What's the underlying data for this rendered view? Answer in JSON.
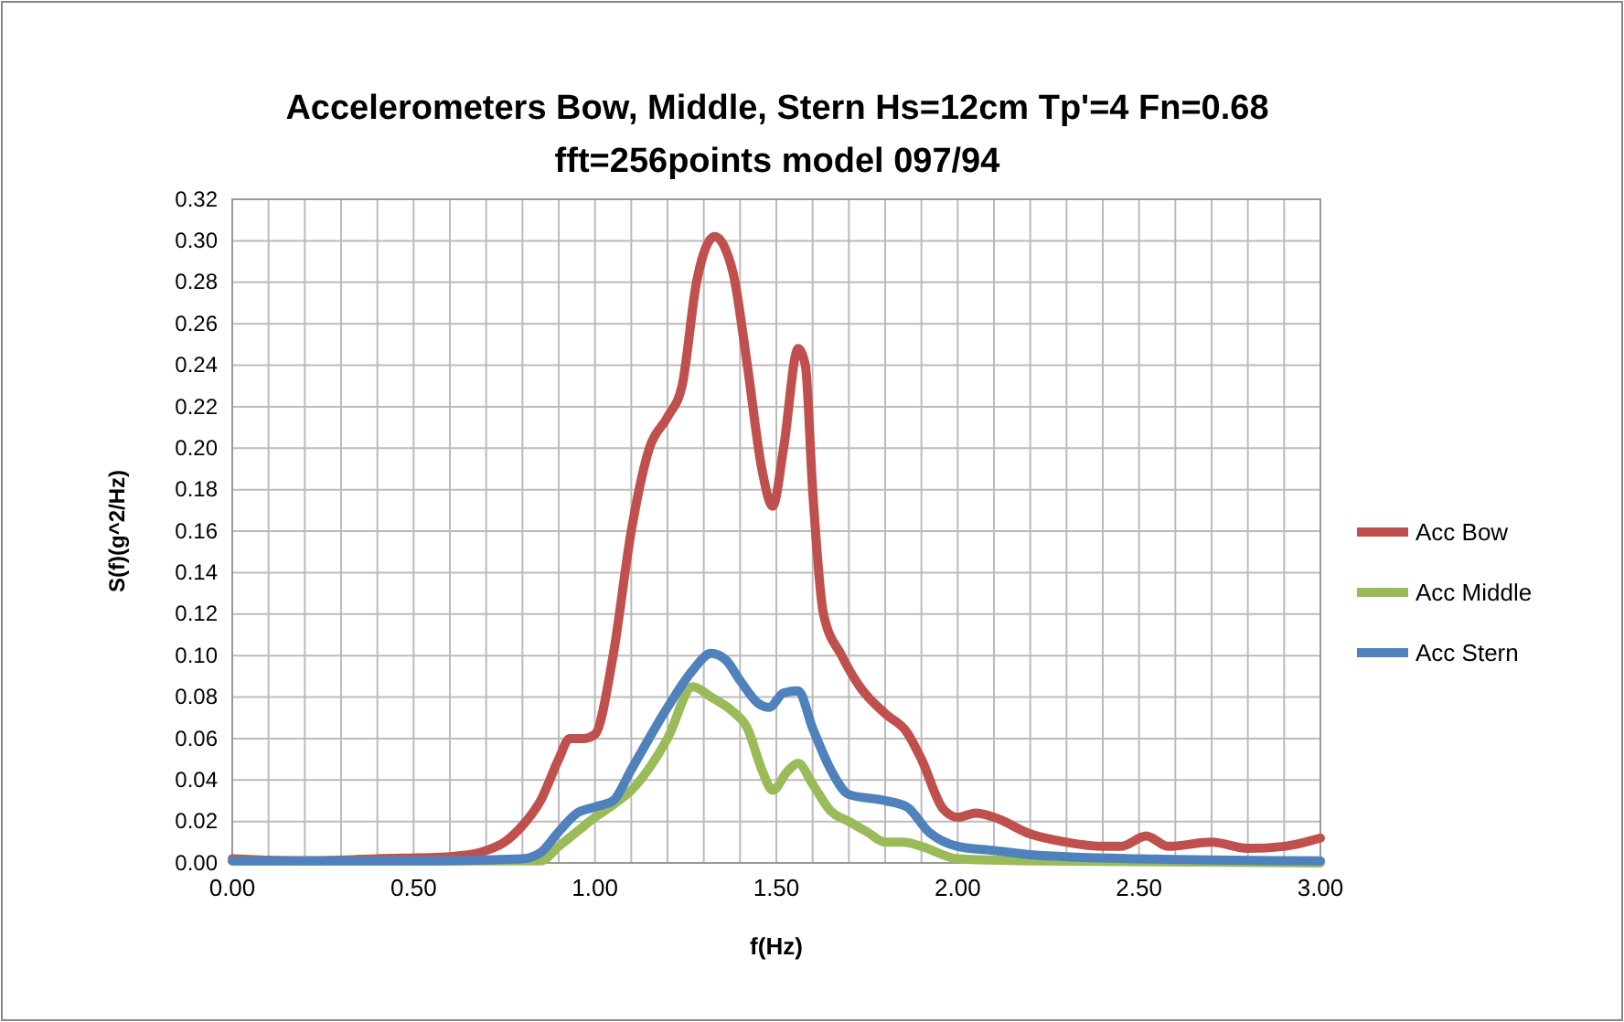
{
  "chart_data": {
    "type": "line",
    "title": "Accelerometers Bow, Middle, Stern Hs=12cm Tp'=4 Fn=0.68",
    "subtitle": "fft=256points model 097/94",
    "xlabel": "f(Hz)",
    "ylabel": "S(f)(g^2/Hz)",
    "legend": "right",
    "grid": true,
    "line_style": "solid",
    "marker": "none",
    "xlim": [
      0,
      3
    ],
    "ylim": [
      0,
      0.32
    ],
    "xticks": [
      {
        "value": 0,
        "label": "0.00"
      },
      {
        "value": 0.1,
        "label": null
      },
      {
        "value": 0.2,
        "label": null
      },
      {
        "value": 0.3,
        "label": null
      },
      {
        "value": 0.4,
        "label": null
      },
      {
        "value": 0.5,
        "label": "0.50"
      },
      {
        "value": 0.6,
        "label": null
      },
      {
        "value": 0.7,
        "label": null
      },
      {
        "value": 0.8,
        "label": null
      },
      {
        "value": 0.9,
        "label": null
      },
      {
        "value": 1,
        "label": "1.00"
      },
      {
        "value": 1.1,
        "label": null
      },
      {
        "value": 1.2,
        "label": null
      },
      {
        "value": 1.3,
        "label": null
      },
      {
        "value": 1.4,
        "label": null
      },
      {
        "value": 1.5,
        "label": "1.50"
      },
      {
        "value": 1.6,
        "label": null
      },
      {
        "value": 1.7,
        "label": null
      },
      {
        "value": 1.8,
        "label": null
      },
      {
        "value": 1.9,
        "label": null
      },
      {
        "value": 2,
        "label": "2.00"
      },
      {
        "value": 2.1,
        "label": null
      },
      {
        "value": 2.2,
        "label": null
      },
      {
        "value": 2.3,
        "label": null
      },
      {
        "value": 2.4,
        "label": null
      },
      {
        "value": 2.5,
        "label": "2.50"
      },
      {
        "value": 2.6,
        "label": null
      },
      {
        "value": 2.7,
        "label": null
      },
      {
        "value": 2.8,
        "label": null
      },
      {
        "value": 2.9,
        "label": null
      },
      {
        "value": 3,
        "label": "3.00"
      }
    ],
    "yticks": [
      {
        "value": 0,
        "label": "0.00"
      },
      {
        "value": 0.02,
        "label": "0.02"
      },
      {
        "value": 0.04,
        "label": "0.04"
      },
      {
        "value": 0.06,
        "label": "0.06"
      },
      {
        "value": 0.08,
        "label": "0.08"
      },
      {
        "value": 0.1,
        "label": "0.10"
      },
      {
        "value": 0.12,
        "label": "0.12"
      },
      {
        "value": 0.14,
        "label": "0.14"
      },
      {
        "value": 0.16,
        "label": "0.16"
      },
      {
        "value": 0.18,
        "label": "0.18"
      },
      {
        "value": 0.2,
        "label": "0.20"
      },
      {
        "value": 0.22,
        "label": "0.22"
      },
      {
        "value": 0.24,
        "label": "0.24"
      },
      {
        "value": 0.26,
        "label": "0.26"
      },
      {
        "value": 0.28,
        "label": "0.28"
      },
      {
        "value": 0.3,
        "label": "0.30"
      },
      {
        "value": 0.32,
        "label": "0.32"
      }
    ],
    "series": [
      {
        "name": "Acc Bow",
        "color": "#c0504d",
        "x": [
          0,
          0.2,
          0.4,
          0.6,
          0.7,
          0.75,
          0.8,
          0.85,
          0.9,
          0.93,
          0.97,
          1.0,
          1.05,
          1.1,
          1.15,
          1.2,
          1.24,
          1.28,
          1.33,
          1.38,
          1.42,
          1.46,
          1.49,
          1.52,
          1.56,
          1.58,
          1.6,
          1.63,
          1.68,
          1.73,
          1.8,
          1.86,
          1.9,
          1.96,
          2.0,
          2.05,
          2.1,
          2.2,
          2.3,
          2.4,
          2.45,
          2.52,
          2.58,
          2.7,
          2.8,
          2.9,
          3.0
        ],
        "values": [
          0.002,
          0.001,
          0.002,
          0.003,
          0.006,
          0.01,
          0.018,
          0.03,
          0.05,
          0.06,
          0.06,
          0.062,
          0.1,
          0.16,
          0.2,
          0.215,
          0.23,
          0.28,
          0.302,
          0.285,
          0.24,
          0.19,
          0.172,
          0.2,
          0.248,
          0.24,
          0.18,
          0.12,
          0.1,
          0.085,
          0.072,
          0.063,
          0.05,
          0.026,
          0.022,
          0.024,
          0.022,
          0.014,
          0.01,
          0.008,
          0.008,
          0.013,
          0.008,
          0.01,
          0.007,
          0.008,
          0.012
        ]
      },
      {
        "name": "Acc Middle",
        "color": "#9bbb59",
        "x": [
          0,
          0.5,
          0.85,
          0.9,
          0.95,
          1.0,
          1.05,
          1.1,
          1.2,
          1.27,
          1.32,
          1.38,
          1.42,
          1.46,
          1.49,
          1.53,
          1.56,
          1.6,
          1.65,
          1.7,
          1.75,
          1.8,
          1.85,
          1.9,
          2.0,
          2.2,
          3.0
        ],
        "values": [
          0.001,
          0.001,
          0.001,
          0.008,
          0.015,
          0.022,
          0.028,
          0.035,
          0.06,
          0.085,
          0.08,
          0.073,
          0.065,
          0.045,
          0.035,
          0.044,
          0.048,
          0.038,
          0.025,
          0.02,
          0.015,
          0.01,
          0.01,
          0.008,
          0.002,
          0.001,
          0
        ]
      },
      {
        "name": "Acc Stern",
        "color": "#4f81bd",
        "x": [
          0,
          0.5,
          0.8,
          0.85,
          0.9,
          0.95,
          1.0,
          1.05,
          1.1,
          1.2,
          1.27,
          1.32,
          1.36,
          1.4,
          1.45,
          1.48,
          1.52,
          1.56,
          1.6,
          1.65,
          1.7,
          1.8,
          1.86,
          1.92,
          2.0,
          2.1,
          2.2,
          2.5,
          3.0
        ],
        "values": [
          0.001,
          0.001,
          0.002,
          0.005,
          0.015,
          0.024,
          0.027,
          0.03,
          0.045,
          0.075,
          0.093,
          0.101,
          0.098,
          0.088,
          0.077,
          0.075,
          0.082,
          0.083,
          0.065,
          0.045,
          0.033,
          0.03,
          0.027,
          0.015,
          0.008,
          0.006,
          0.004,
          0.002,
          0.001
        ]
      }
    ]
  }
}
